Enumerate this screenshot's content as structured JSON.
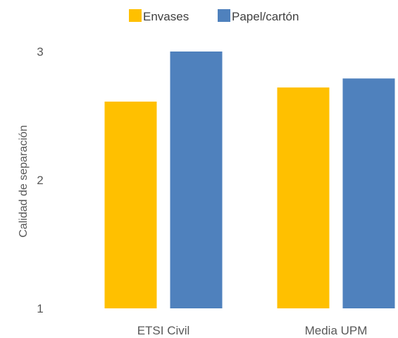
{
  "chart_data": {
    "type": "bar",
    "categories": [
      "ETSI Civil",
      "Media UPM"
    ],
    "series": [
      {
        "name": "Envases",
        "color": "#FFC000",
        "values": [
          2.61,
          2.72
        ]
      },
      {
        "name": "Papel/cartón",
        "color": "#4F81BD",
        "values": [
          3.0,
          2.79
        ]
      }
    ],
    "xlabel": "",
    "ylabel": "Calidad de separación",
    "ylim": [
      1,
      3
    ],
    "yticks": [
      "1",
      "2",
      "3"
    ],
    "ytick_values": [
      1,
      2,
      3
    ],
    "grid": false,
    "legend_position": "top"
  }
}
